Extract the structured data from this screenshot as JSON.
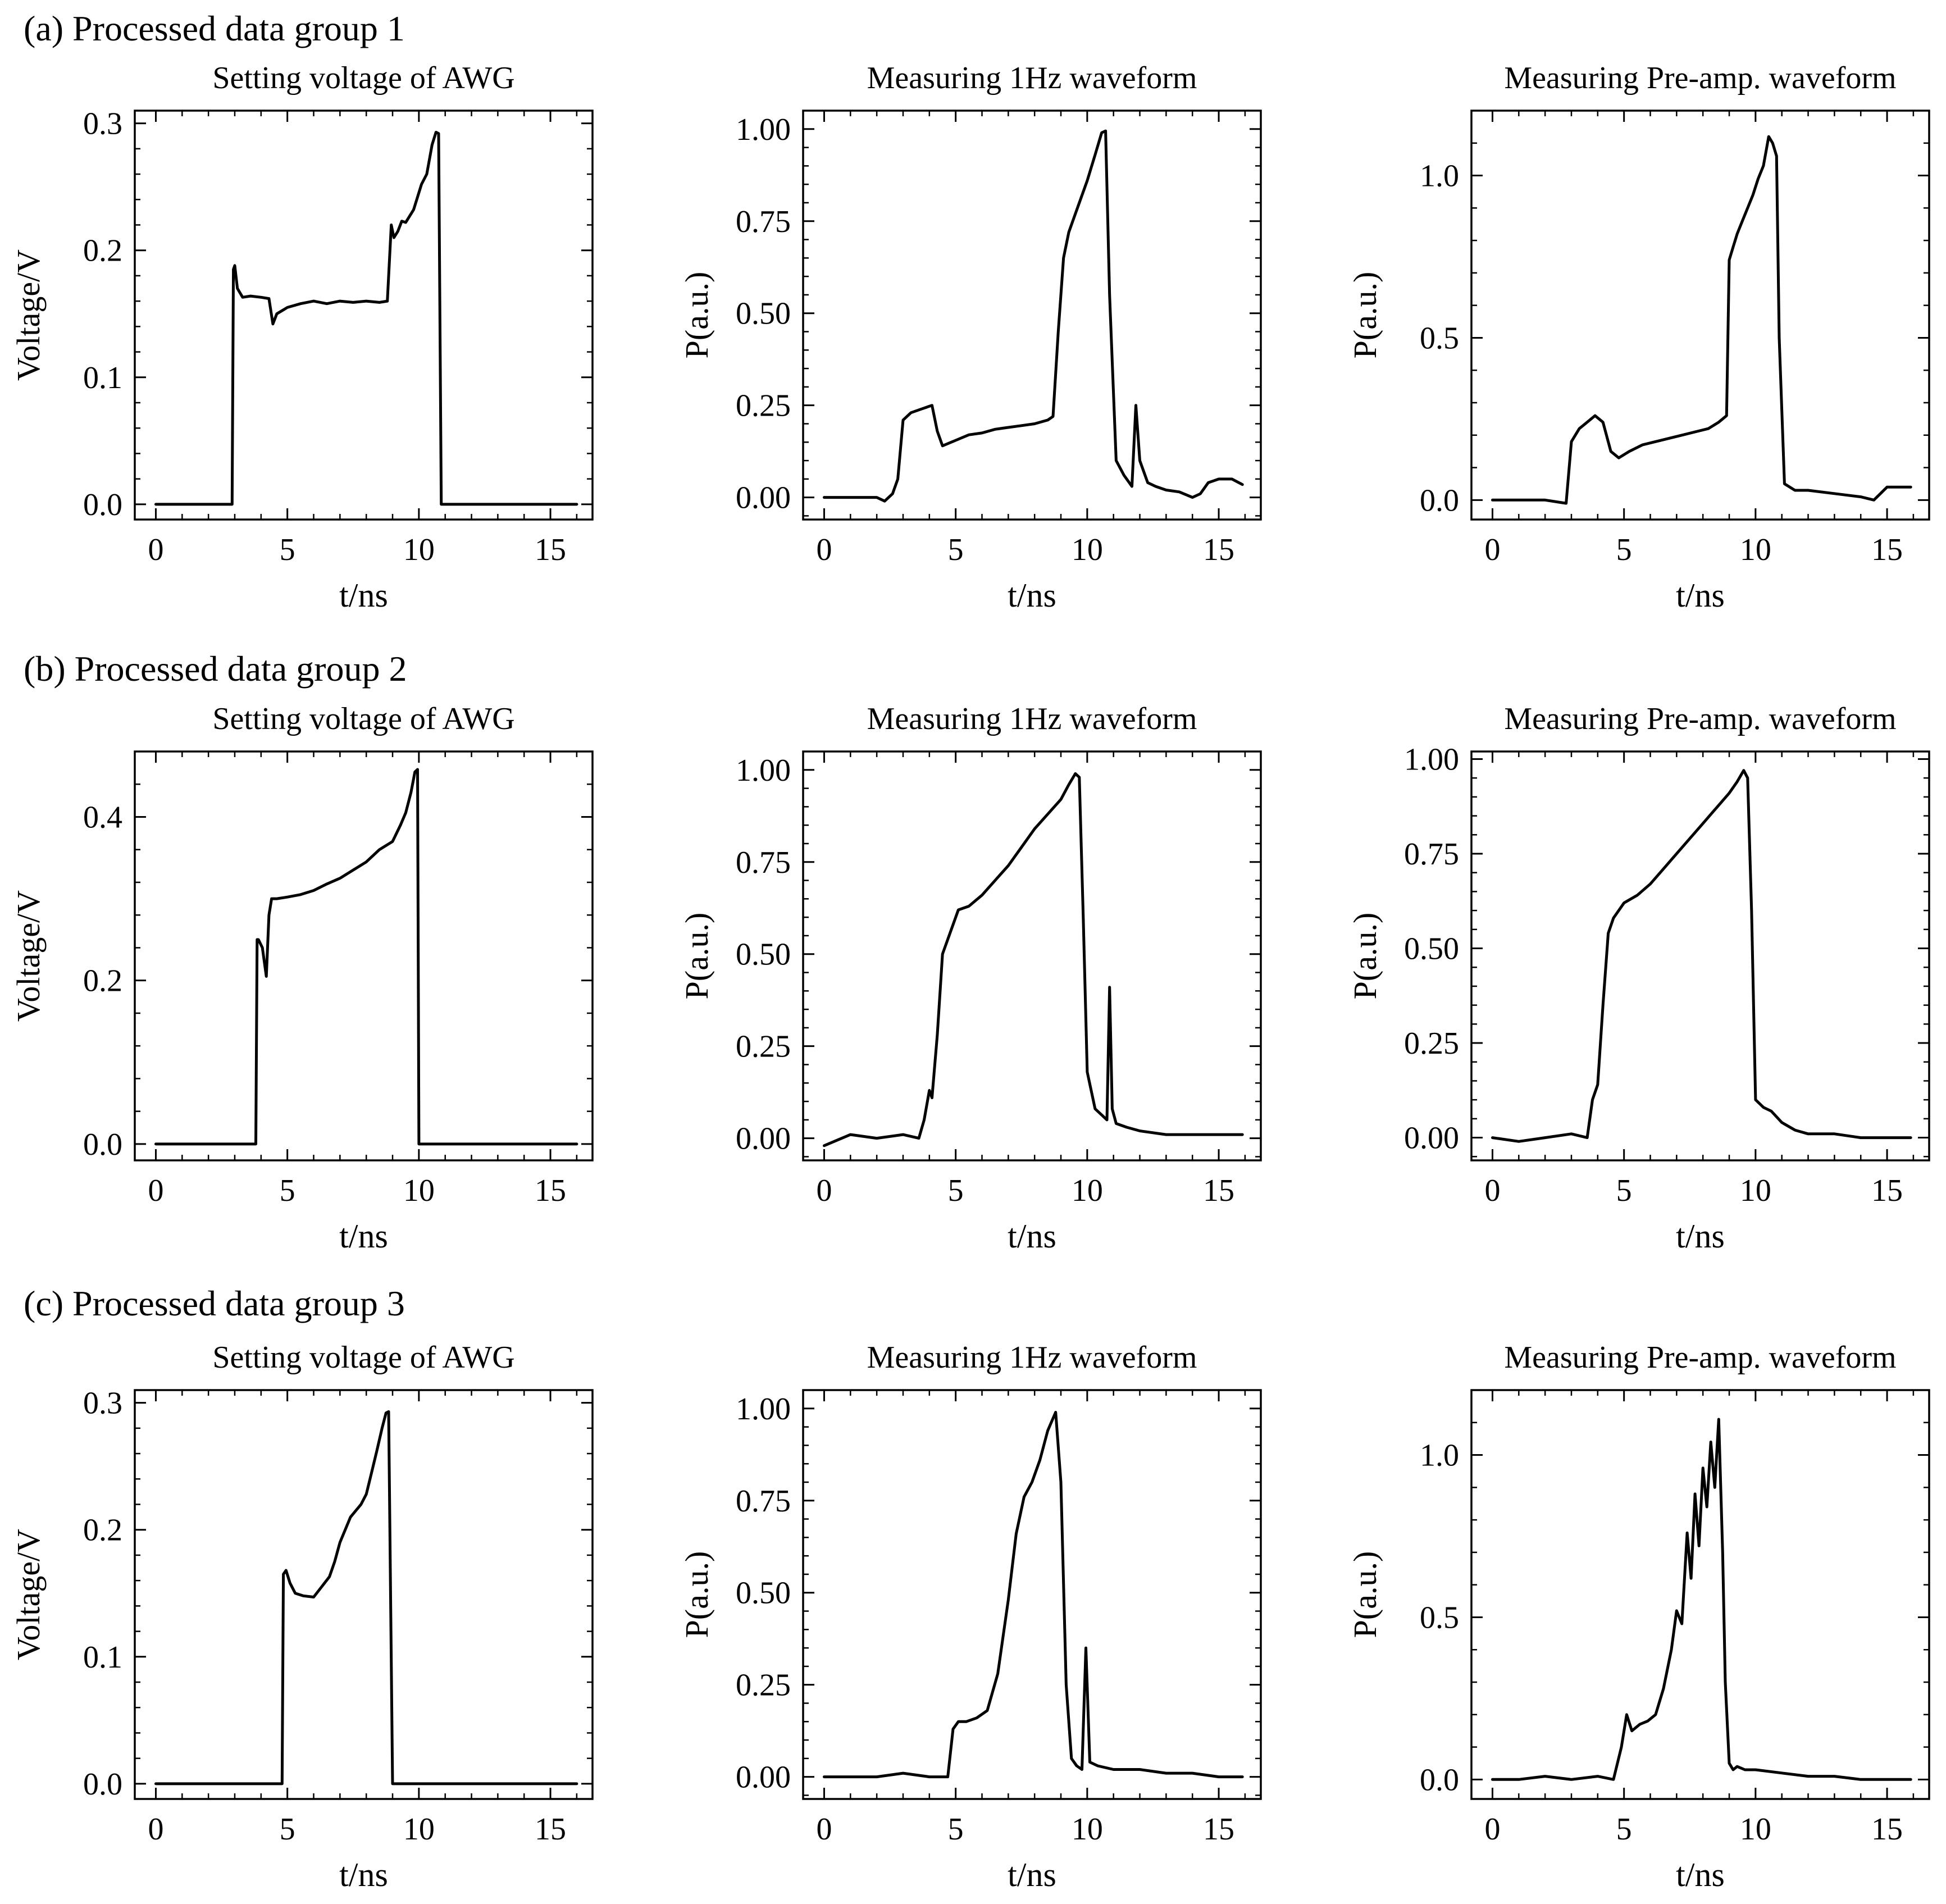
{
  "figure": {
    "groups": [
      {
        "label": "(a) Processed data group 1"
      },
      {
        "label": "(b) Processed data group 2"
      },
      {
        "label": "(c) Processed data group 3"
      }
    ]
  },
  "chart_data": [
    {
      "type": "line",
      "group": "(a) Processed data group 1",
      "title": "Setting voltage of AWG",
      "xlabel": "t/ns",
      "ylabel": "Voltage/V",
      "xlim": [
        -0.8,
        16.6
      ],
      "ylim": [
        -0.012,
        0.31
      ],
      "xticks": [
        0,
        5,
        10,
        15
      ],
      "xtick_labels": [
        "0",
        "5",
        "10",
        "15"
      ],
      "yticks": [
        0.0,
        0.1,
        0.2,
        0.3
      ],
      "ytick_labels": [
        "0.0",
        "0.1",
        "0.2",
        "0.3"
      ],
      "x": [
        0,
        2.9,
        2.95,
        3.0,
        3.1,
        3.3,
        3.6,
        4.0,
        4.3,
        4.45,
        4.6,
        5.0,
        5.5,
        6.0,
        6.5,
        7.0,
        7.5,
        8.0,
        8.5,
        8.8,
        8.95,
        9.05,
        9.2,
        9.35,
        9.5,
        9.8,
        10.1,
        10.3,
        10.5,
        10.65,
        10.75,
        10.85,
        11.0,
        16.0
      ],
      "y": [
        0.0,
        0.0,
        0.185,
        0.188,
        0.17,
        0.163,
        0.164,
        0.163,
        0.162,
        0.142,
        0.15,
        0.155,
        0.158,
        0.16,
        0.158,
        0.16,
        0.159,
        0.16,
        0.159,
        0.16,
        0.22,
        0.21,
        0.215,
        0.223,
        0.222,
        0.232,
        0.252,
        0.26,
        0.283,
        0.293,
        0.292,
        0.0,
        0.0,
        0.0
      ]
    },
    {
      "type": "line",
      "group": "(a) Processed data group 1",
      "title": "Measuring 1Hz waveform",
      "xlabel": "t/ns",
      "ylabel": "P(a.u.)",
      "xlim": [
        -0.8,
        16.6
      ],
      "ylim": [
        -0.06,
        1.05
      ],
      "xticks": [
        0,
        5,
        10,
        15
      ],
      "xtick_labels": [
        "0",
        "5",
        "10",
        "15"
      ],
      "yticks": [
        0.0,
        0.25,
        0.5,
        0.75,
        1.0
      ],
      "ytick_labels": [
        "0.00",
        "0.25",
        "0.50",
        "0.75",
        "1.00"
      ],
      "x": [
        0,
        2.0,
        2.3,
        2.6,
        2.8,
        3.0,
        3.3,
        3.7,
        4.1,
        4.3,
        4.5,
        5.0,
        5.5,
        6.0,
        6.5,
        7.0,
        7.5,
        8.0,
        8.5,
        8.7,
        8.9,
        9.1,
        9.3,
        9.6,
        10.0,
        10.3,
        10.55,
        10.7,
        10.85,
        11.1,
        11.4,
        11.7,
        11.85,
        12.0,
        12.3,
        12.6,
        13.0,
        13.5,
        14.0,
        14.3,
        14.6,
        15.0,
        15.5,
        15.9
      ],
      "y": [
        0.0,
        0.0,
        -0.01,
        0.01,
        0.05,
        0.21,
        0.23,
        0.24,
        0.25,
        0.18,
        0.14,
        0.155,
        0.17,
        0.175,
        0.185,
        0.19,
        0.195,
        0.2,
        0.21,
        0.22,
        0.45,
        0.65,
        0.72,
        0.78,
        0.86,
        0.93,
        0.99,
        0.995,
        0.55,
        0.1,
        0.06,
        0.03,
        0.25,
        0.1,
        0.04,
        0.03,
        0.02,
        0.015,
        0.0,
        0.01,
        0.04,
        0.05,
        0.05,
        0.035
      ]
    },
    {
      "type": "line",
      "group": "(a) Processed data group 1",
      "title": "Measuring Pre-amp. waveform",
      "xlabel": "t/ns",
      "ylabel": "P(a.u.)",
      "xlim": [
        -0.8,
        16.6
      ],
      "ylim": [
        -0.06,
        1.2
      ],
      "xticks": [
        0,
        5,
        10,
        15
      ],
      "xtick_labels": [
        "0",
        "5",
        "10",
        "15"
      ],
      "yticks": [
        0.0,
        0.5,
        1.0
      ],
      "ytick_labels": [
        "0.0",
        "0.5",
        "1.0"
      ],
      "x": [
        0,
        1.0,
        2.0,
        2.8,
        3.0,
        3.3,
        3.6,
        3.9,
        4.2,
        4.5,
        4.8,
        5.2,
        5.7,
        6.2,
        6.7,
        7.2,
        7.7,
        8.2,
        8.6,
        8.9,
        9.0,
        9.15,
        9.3,
        9.5,
        9.7,
        9.9,
        10.1,
        10.3,
        10.5,
        10.65,
        10.8,
        10.9,
        11.1,
        11.5,
        12.0,
        13.0,
        14.0,
        14.5,
        15.0,
        15.9
      ],
      "y": [
        0.0,
        0.0,
        0.0,
        -0.01,
        0.18,
        0.22,
        0.24,
        0.26,
        0.24,
        0.15,
        0.13,
        0.15,
        0.17,
        0.18,
        0.19,
        0.2,
        0.21,
        0.22,
        0.24,
        0.26,
        0.74,
        0.78,
        0.82,
        0.86,
        0.9,
        0.94,
        0.99,
        1.03,
        1.12,
        1.1,
        1.06,
        0.5,
        0.05,
        0.03,
        0.03,
        0.02,
        0.01,
        0.0,
        0.04,
        0.04
      ]
    },
    {
      "type": "line",
      "group": "(b) Processed data group 2",
      "title": "Setting voltage of AWG",
      "xlabel": "t/ns",
      "ylabel": "Voltage/V",
      "xlim": [
        -0.8,
        16.6
      ],
      "ylim": [
        -0.02,
        0.48
      ],
      "xticks": [
        0,
        5,
        10,
        15
      ],
      "xtick_labels": [
        "0",
        "5",
        "10",
        "15"
      ],
      "yticks": [
        0.0,
        0.2,
        0.4
      ],
      "ytick_labels": [
        "0.0",
        "0.2",
        "0.4"
      ],
      "x": [
        0,
        3.8,
        3.85,
        3.9,
        4.05,
        4.2,
        4.3,
        4.4,
        4.6,
        5.0,
        5.5,
        6.0,
        6.5,
        7.0,
        7.5,
        8.0,
        8.5,
        9.0,
        9.3,
        9.5,
        9.7,
        9.85,
        9.95,
        10.0,
        16.0
      ],
      "y": [
        0.0,
        0.0,
        0.25,
        0.25,
        0.24,
        0.205,
        0.28,
        0.3,
        0.3,
        0.302,
        0.305,
        0.31,
        0.318,
        0.325,
        0.335,
        0.345,
        0.36,
        0.37,
        0.39,
        0.405,
        0.43,
        0.455,
        0.458,
        0.0,
        0.0
      ]
    },
    {
      "type": "line",
      "group": "(b) Processed data group 2",
      "title": "Measuring 1Hz waveform",
      "xlabel": "t/ns",
      "ylabel": "P(a.u.)",
      "xlim": [
        -0.8,
        16.6
      ],
      "ylim": [
        -0.06,
        1.05
      ],
      "xticks": [
        0,
        5,
        10,
        15
      ],
      "xtick_labels": [
        "0",
        "5",
        "10",
        "15"
      ],
      "yticks": [
        0.0,
        0.25,
        0.5,
        0.75,
        1.0
      ],
      "ytick_labels": [
        "0.00",
        "0.25",
        "0.50",
        "0.75",
        "1.00"
      ],
      "x": [
        0,
        1.0,
        2.0,
        3.0,
        3.6,
        3.8,
        4.0,
        4.1,
        4.3,
        4.5,
        4.8,
        5.1,
        5.5,
        6.0,
        6.5,
        7.0,
        7.5,
        8.0,
        8.5,
        9.0,
        9.3,
        9.55,
        9.7,
        9.85,
        10.0,
        10.3,
        10.6,
        10.75,
        10.85,
        10.95,
        11.1,
        11.5,
        12.0,
        13.0,
        14.0,
        15.0,
        15.9
      ],
      "y": [
        -0.02,
        0.01,
        0.0,
        0.01,
        0.0,
        0.05,
        0.13,
        0.11,
        0.28,
        0.5,
        0.56,
        0.62,
        0.63,
        0.66,
        0.7,
        0.74,
        0.79,
        0.84,
        0.88,
        0.92,
        0.96,
        0.99,
        0.98,
        0.6,
        0.18,
        0.08,
        0.06,
        0.05,
        0.41,
        0.08,
        0.04,
        0.03,
        0.02,
        0.01,
        0.01,
        0.01,
        0.01
      ]
    },
    {
      "type": "line",
      "group": "(b) Processed data group 2",
      "title": "Measuring Pre-amp. waveform",
      "xlabel": "t/ns",
      "ylabel": "P(a.u.)",
      "xlim": [
        -0.8,
        16.6
      ],
      "ylim": [
        -0.06,
        1.02
      ],
      "xticks": [
        0,
        5,
        10,
        15
      ],
      "xtick_labels": [
        "0",
        "5",
        "10",
        "15"
      ],
      "yticks": [
        0.0,
        0.25,
        0.5,
        0.75,
        1.0
      ],
      "ytick_labels": [
        "0.00",
        "0.25",
        "0.50",
        "0.75",
        "1.00"
      ],
      "x": [
        0,
        1.0,
        2.0,
        3.0,
        3.6,
        3.8,
        4.0,
        4.2,
        4.4,
        4.6,
        5.0,
        5.5,
        6.0,
        6.5,
        7.0,
        7.5,
        8.0,
        8.5,
        9.0,
        9.3,
        9.55,
        9.7,
        9.85,
        10.0,
        10.3,
        10.6,
        11.0,
        11.5,
        12.0,
        13.0,
        14.0,
        15.0,
        15.9
      ],
      "y": [
        0.0,
        -0.01,
        0.0,
        0.01,
        0.0,
        0.1,
        0.14,
        0.35,
        0.54,
        0.58,
        0.62,
        0.64,
        0.67,
        0.71,
        0.75,
        0.79,
        0.83,
        0.87,
        0.91,
        0.94,
        0.97,
        0.95,
        0.6,
        0.1,
        0.08,
        0.07,
        0.04,
        0.02,
        0.01,
        0.01,
        0.0,
        0.0,
        0.0
      ]
    },
    {
      "type": "line",
      "group": "(c) Processed data group 3",
      "title": "Setting voltage of AWG",
      "xlabel": "t/ns",
      "ylabel": "Voltage/V",
      "xlim": [
        -0.8,
        16.6
      ],
      "ylim": [
        -0.012,
        0.31
      ],
      "xticks": [
        0,
        5,
        10,
        15
      ],
      "xtick_labels": [
        "0",
        "5",
        "10",
        "15"
      ],
      "yticks": [
        0.0,
        0.1,
        0.2,
        0.3
      ],
      "ytick_labels": [
        "0.0",
        "0.1",
        "0.2",
        "0.3"
      ],
      "x": [
        0,
        4.8,
        4.85,
        4.95,
        5.1,
        5.3,
        5.6,
        6.0,
        6.3,
        6.6,
        6.8,
        7.0,
        7.2,
        7.4,
        7.6,
        7.8,
        8.0,
        8.2,
        8.4,
        8.6,
        8.75,
        8.85,
        9.0,
        16.0
      ],
      "y": [
        0.0,
        0.0,
        0.165,
        0.168,
        0.158,
        0.15,
        0.148,
        0.147,
        0.155,
        0.163,
        0.175,
        0.19,
        0.2,
        0.21,
        0.215,
        0.22,
        0.228,
        0.245,
        0.262,
        0.28,
        0.292,
        0.293,
        0.0,
        0.0
      ]
    },
    {
      "type": "line",
      "group": "(c) Processed data group 3",
      "title": "Measuring 1Hz waveform",
      "xlabel": "t/ns",
      "ylabel": "P(a.u.)",
      "xlim": [
        -0.8,
        16.6
      ],
      "ylim": [
        -0.06,
        1.05
      ],
      "xticks": [
        0,
        5,
        10,
        15
      ],
      "xtick_labels": [
        "0",
        "5",
        "10",
        "15"
      ],
      "yticks": [
        0.0,
        0.25,
        0.5,
        0.75,
        1.0
      ],
      "ytick_labels": [
        "0.00",
        "0.25",
        "0.50",
        "0.75",
        "1.00"
      ],
      "x": [
        0,
        1.0,
        2.0,
        3.0,
        4.0,
        4.7,
        4.9,
        5.1,
        5.4,
        5.8,
        6.2,
        6.6,
        7.0,
        7.3,
        7.6,
        7.9,
        8.2,
        8.5,
        8.8,
        9.0,
        9.2,
        9.4,
        9.6,
        9.8,
        9.95,
        10.1,
        10.4,
        11.0,
        12.0,
        13.0,
        14.0,
        15.0,
        15.9
      ],
      "y": [
        0.0,
        0.0,
        0.0,
        0.01,
        0.0,
        0.0,
        0.13,
        0.15,
        0.15,
        0.16,
        0.18,
        0.28,
        0.48,
        0.66,
        0.76,
        0.8,
        0.86,
        0.94,
        0.99,
        0.8,
        0.25,
        0.05,
        0.03,
        0.02,
        0.35,
        0.04,
        0.03,
        0.02,
        0.02,
        0.01,
        0.01,
        0.0,
        0.0
      ]
    },
    {
      "type": "line",
      "group": "(c) Processed data group 3",
      "title": "Measuring Pre-amp. waveform",
      "xlabel": "t/ns",
      "ylabel": "P(a.u.)",
      "xlim": [
        -0.8,
        16.6
      ],
      "ylim": [
        -0.06,
        1.2
      ],
      "xticks": [
        0,
        5,
        10,
        15
      ],
      "xtick_labels": [
        "0",
        "5",
        "10",
        "15"
      ],
      "yticks": [
        0.0,
        0.5,
        1.0
      ],
      "ytick_labels": [
        "0.0",
        "0.5",
        "1.0"
      ],
      "x": [
        0,
        1.0,
        2.0,
        3.0,
        4.0,
        4.6,
        4.9,
        5.1,
        5.3,
        5.6,
        5.9,
        6.2,
        6.5,
        6.8,
        7.0,
        7.2,
        7.4,
        7.55,
        7.7,
        7.85,
        8.0,
        8.15,
        8.3,
        8.45,
        8.6,
        8.75,
        8.85,
        9.0,
        9.15,
        9.3,
        9.6,
        10.0,
        11.0,
        12.0,
        13.0,
        14.0,
        15.0,
        15.9
      ],
      "y": [
        0.0,
        0.0,
        0.01,
        0.0,
        0.01,
        0.0,
        0.1,
        0.2,
        0.15,
        0.17,
        0.18,
        0.2,
        0.28,
        0.4,
        0.52,
        0.48,
        0.76,
        0.62,
        0.88,
        0.72,
        0.96,
        0.84,
        1.04,
        0.9,
        1.11,
        0.7,
        0.3,
        0.05,
        0.03,
        0.04,
        0.03,
        0.03,
        0.02,
        0.01,
        0.01,
        0.0,
        0.0,
        0.0
      ]
    }
  ]
}
